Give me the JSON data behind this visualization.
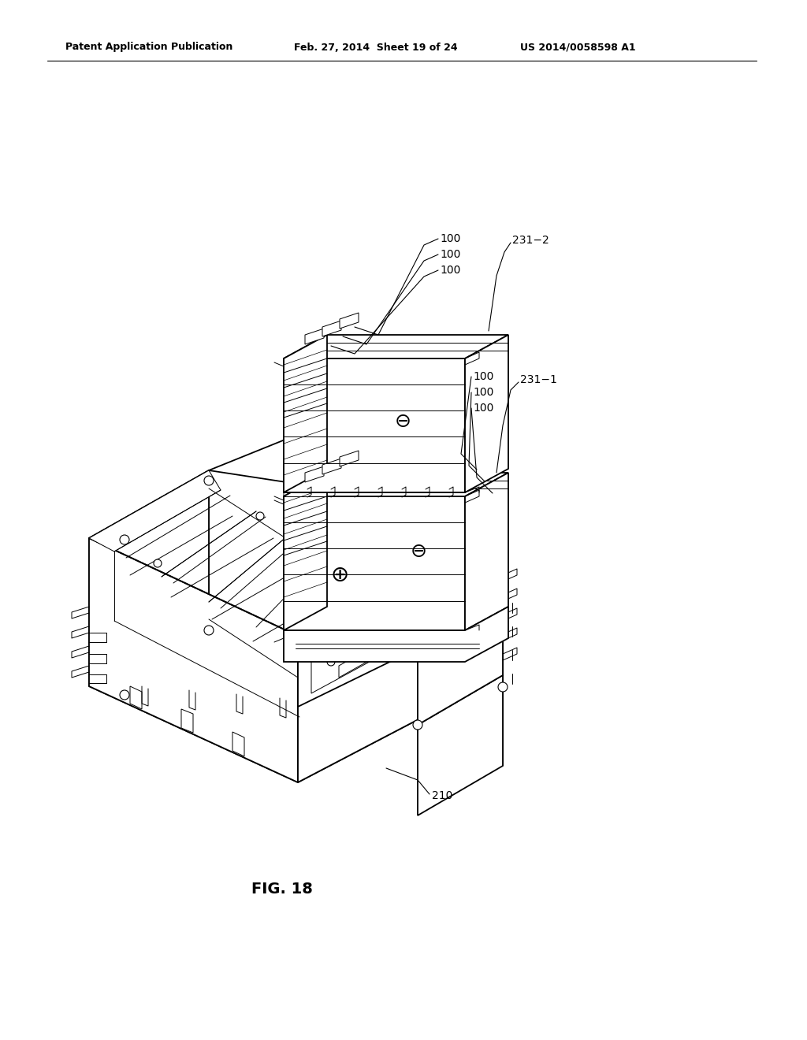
{
  "bg_color": "#ffffff",
  "lc": "#000000",
  "header_left": "Patent Application Publication",
  "header_mid": "Feb. 27, 2014  Sheet 19 of 24",
  "header_right": "US 2014/0058598 A1",
  "fig_label": "FIG. 18",
  "lw_main": 1.3,
  "lw_thin": 0.7,
  "lw_med": 1.0
}
